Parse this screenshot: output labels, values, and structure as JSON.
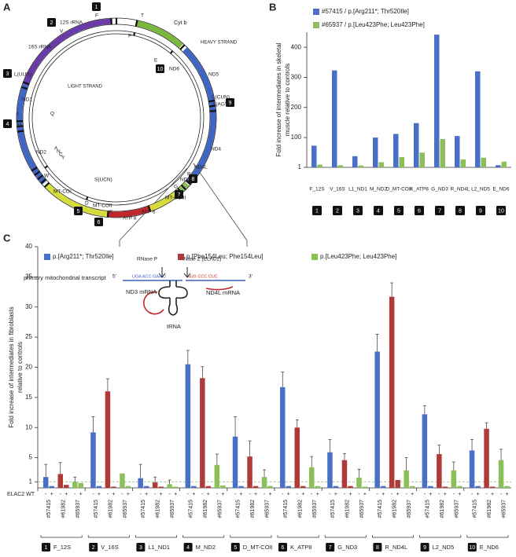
{
  "panels": [
    "A",
    "B",
    "C"
  ],
  "diagram": {
    "markers": [
      1,
      2,
      3,
      4,
      5,
      6,
      7,
      8,
      9,
      10
    ],
    "labels": [
      "F",
      "T",
      "Cyt b",
      "HEAVY STRAND",
      "12S rRNA",
      "V",
      "16S rRNA",
      "P",
      "E",
      "ND6",
      "ND5",
      "L(CUN)",
      "S(AGY)",
      "H",
      "ND4",
      "ND4L",
      "R",
      "ND3",
      "G",
      "MT-COIII",
      "ATP 6",
      "ATP 8",
      "K",
      "MT-COII",
      "D",
      "MT-COI",
      "S(UCN)",
      "W",
      "ND2",
      "A",
      "N",
      "C",
      "Y",
      "M",
      "I",
      "ND1",
      "Q",
      "L(UUR)",
      "LIGHT STRAND",
      "RNase P",
      "RNase Z (ELAC2)",
      "primary mitochondrial transcript",
      "5'",
      "3'",
      "UGA ACC GAA U",
      "AUG CCC CUC",
      "ND3 mRNA",
      "ND4L mRNA",
      "tRNA"
    ]
  },
  "chart_data": [
    {
      "type": "bar",
      "ylabel": [
        "Fold increase of intermediates in skeletal",
        "muscle relative to controls"
      ],
      "categories": [
        "F_12S",
        "V_16S",
        "L1_ND1",
        "M_ND2",
        "D_MT-COII",
        "K_ATP8",
        "G_ND3",
        "R_ND4L",
        "L2_ND5",
        "E_ND6"
      ],
      "category_numbers": [
        1,
        2,
        3,
        4,
        5,
        6,
        7,
        8,
        9,
        10
      ],
      "series": [
        {
          "name": "#57415 / p.[Arg211*; Thr520Ile]",
          "color": "#4a6fc7",
          "values": [
            73,
            323,
            38,
            100,
            112,
            148,
            442,
            105,
            320,
            8
          ]
        },
        {
          "name": "#65937 / p.[Leu423Phe; Leu423Phe]",
          "color": "#8cbf5a",
          "values": [
            10,
            8,
            7,
            18,
            35,
            50,
            95,
            27,
            33,
            20
          ]
        }
      ],
      "ylim": [
        1,
        450
      ],
      "yticks": [
        1,
        100,
        200,
        300,
        400
      ]
    },
    {
      "type": "bar",
      "ylabel": [
        "Fold increase of intermediates in fibroblasts",
        "relative to controls"
      ],
      "categories": [
        "F_12S",
        "V_16S",
        "L1_ND1",
        "M_ND2",
        "D_MT-COII",
        "K_ATP8",
        "G_ND3",
        "R_ND4L",
        "L2_ND5",
        "E_ND6"
      ],
      "category_numbers": [
        1,
        2,
        3,
        4,
        5,
        6,
        7,
        8,
        9,
        10
      ],
      "subgroups": [
        "-",
        "+"
      ],
      "subgroup_label": "ELAC2 WT",
      "cell_lines": [
        "#57415",
        "#61982",
        "#65937"
      ],
      "series": [
        {
          "name": "p.[Arg211*; Thr520Ile]",
          "color": "#4a6fc7",
          "values": [
            1.8,
            9.2,
            1.6,
            20.5,
            8.5,
            16.7,
            5.9,
            22.6,
            12.2,
            6.2
          ],
          "errors": [
            2.1,
            2.6,
            2.3,
            2.3,
            3.3,
            2.5,
            2.1,
            2.9,
            1.4,
            1.8
          ],
          "plus_values": [
            0.3,
            0.3,
            0.3,
            0.3,
            0.3,
            0.3,
            0.3,
            0.3,
            0.3,
            0.3
          ]
        },
        {
          "name": "p.[Phe154Leu; Phe154Leu]",
          "color": "#b03a3a",
          "values": [
            2.3,
            16,
            0.9,
            18.2,
            5.2,
            10,
            4.6,
            31.7,
            5.6,
            9.8
          ],
          "errors": [
            1.9,
            2.1,
            0.9,
            1.9,
            2.6,
            1.3,
            1.1,
            2.3,
            1.5,
            1
          ],
          "plus_values": [
            0.5,
            0.2,
            0.2,
            0.3,
            0.3,
            0.3,
            0.3,
            1.3,
            0.2,
            0.2
          ]
        },
        {
          "name": "p.[Leu423Phe; Leu423Phe]",
          "color": "#8cbf5a",
          "values": [
            1,
            2.4,
            0.6,
            3.8,
            1.8,
            3.4,
            1.7,
            2.9,
            2.9,
            4.6
          ],
          "errors": [
            0.8,
            0,
            0.7,
            1.8,
            1.2,
            1.8,
            1.4,
            2.1,
            1.4,
            1.8
          ],
          "plus_values": [
            0.8,
            0.3,
            0.2,
            0.4,
            0.3,
            0.3,
            0.2,
            0.3,
            0.3,
            0.3
          ]
        }
      ],
      "ylim": [
        0,
        40
      ],
      "yticks": [
        1,
        5,
        10,
        15,
        20,
        25,
        30,
        35,
        40
      ],
      "hline": 1,
      "hline_color": "#9bc07a"
    }
  ]
}
